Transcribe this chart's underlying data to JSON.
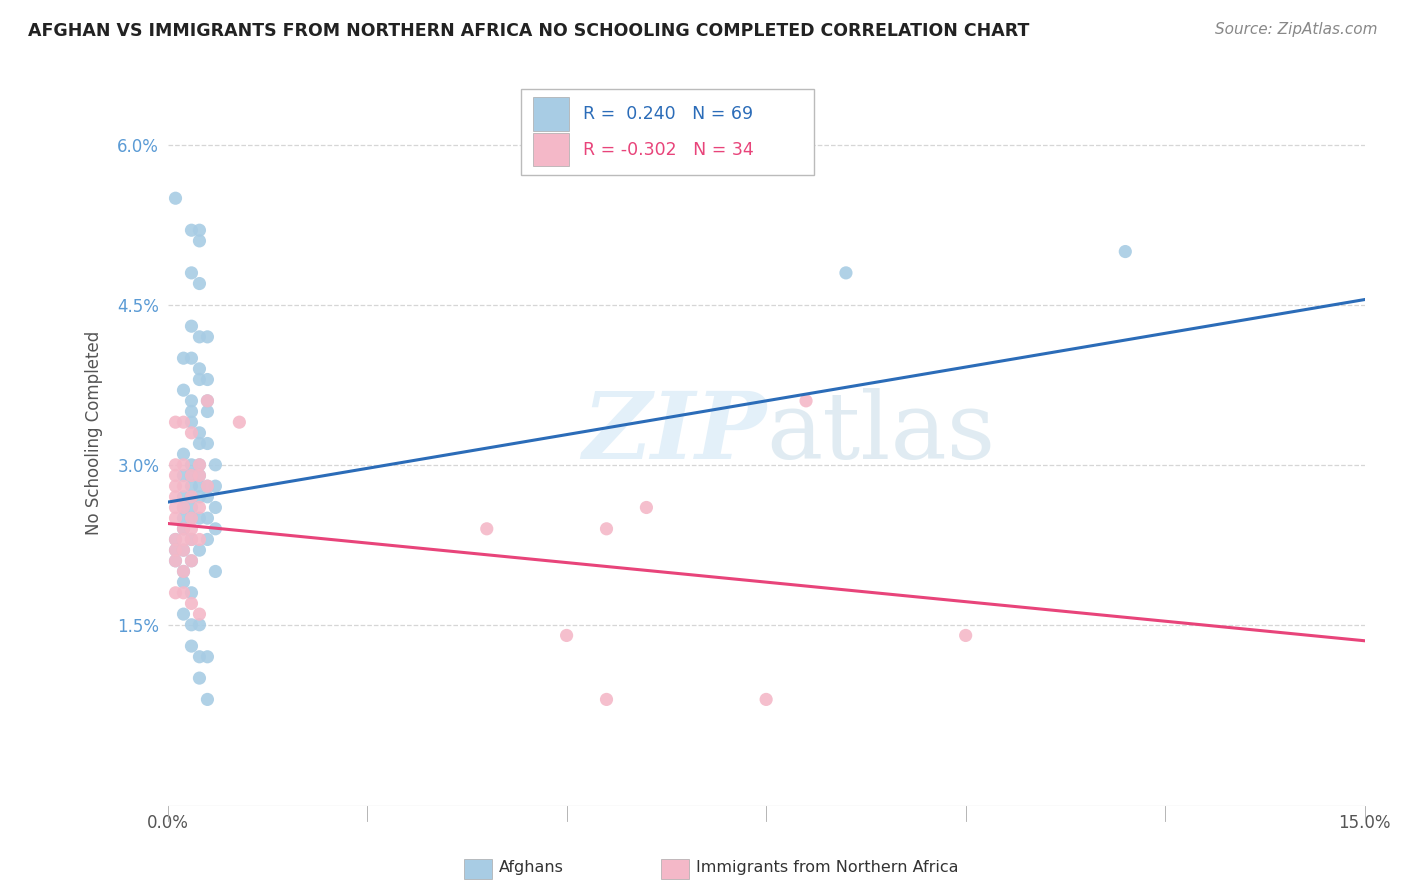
{
  "title": "AFGHAN VS IMMIGRANTS FROM NORTHERN AFRICA NO SCHOOLING COMPLETED CORRELATION CHART",
  "source": "Source: ZipAtlas.com",
  "ylabel": "No Schooling Completed",
  "ytick_labels": [
    "1.5%",
    "3.0%",
    "4.5%",
    "6.0%"
  ],
  "ytick_values": [
    0.015,
    0.03,
    0.045,
    0.06
  ],
  "xlim": [
    0.0,
    0.15
  ],
  "ylim": [
    -0.002,
    0.068
  ],
  "watermark": "ZIPatlas",
  "blue_color": "#a8cce4",
  "pink_color": "#f4b8c8",
  "blue_line_color": "#2b6cb8",
  "pink_line_color": "#e8447a",
  "blue_line": [
    [
      0.0,
      0.0265
    ],
    [
      0.15,
      0.0455
    ]
  ],
  "pink_line": [
    [
      0.0,
      0.0245
    ],
    [
      0.15,
      0.0135
    ]
  ],
  "grid_color": "#cccccc",
  "background_color": "#ffffff",
  "blue_scatter": [
    [
      0.001,
      0.055
    ],
    [
      0.003,
      0.052
    ],
    [
      0.004,
      0.052
    ],
    [
      0.004,
      0.051
    ],
    [
      0.003,
      0.048
    ],
    [
      0.004,
      0.047
    ],
    [
      0.003,
      0.043
    ],
    [
      0.004,
      0.042
    ],
    [
      0.005,
      0.042
    ],
    [
      0.002,
      0.04
    ],
    [
      0.003,
      0.04
    ],
    [
      0.004,
      0.039
    ],
    [
      0.004,
      0.038
    ],
    [
      0.005,
      0.038
    ],
    [
      0.002,
      0.037
    ],
    [
      0.003,
      0.036
    ],
    [
      0.005,
      0.036
    ],
    [
      0.003,
      0.035
    ],
    [
      0.005,
      0.035
    ],
    [
      0.003,
      0.034
    ],
    [
      0.004,
      0.033
    ],
    [
      0.004,
      0.032
    ],
    [
      0.005,
      0.032
    ],
    [
      0.002,
      0.031
    ],
    [
      0.003,
      0.03
    ],
    [
      0.004,
      0.03
    ],
    [
      0.006,
      0.03
    ],
    [
      0.002,
      0.029
    ],
    [
      0.003,
      0.029
    ],
    [
      0.004,
      0.029
    ],
    [
      0.003,
      0.028
    ],
    [
      0.004,
      0.028
    ],
    [
      0.005,
      0.028
    ],
    [
      0.006,
      0.028
    ],
    [
      0.002,
      0.027
    ],
    [
      0.003,
      0.027
    ],
    [
      0.004,
      0.027
    ],
    [
      0.005,
      0.027
    ],
    [
      0.002,
      0.026
    ],
    [
      0.003,
      0.026
    ],
    [
      0.006,
      0.026
    ],
    [
      0.002,
      0.025
    ],
    [
      0.003,
      0.025
    ],
    [
      0.004,
      0.025
    ],
    [
      0.005,
      0.025
    ],
    [
      0.002,
      0.024
    ],
    [
      0.006,
      0.024
    ],
    [
      0.001,
      0.023
    ],
    [
      0.003,
      0.023
    ],
    [
      0.005,
      0.023
    ],
    [
      0.001,
      0.022
    ],
    [
      0.002,
      0.022
    ],
    [
      0.004,
      0.022
    ],
    [
      0.001,
      0.021
    ],
    [
      0.003,
      0.021
    ],
    [
      0.002,
      0.02
    ],
    [
      0.006,
      0.02
    ],
    [
      0.002,
      0.019
    ],
    [
      0.003,
      0.018
    ],
    [
      0.002,
      0.016
    ],
    [
      0.003,
      0.015
    ],
    [
      0.004,
      0.015
    ],
    [
      0.003,
      0.013
    ],
    [
      0.004,
      0.012
    ],
    [
      0.005,
      0.012
    ],
    [
      0.004,
      0.01
    ],
    [
      0.005,
      0.008
    ],
    [
      0.12,
      0.05
    ],
    [
      0.085,
      0.048
    ]
  ],
  "pink_scatter": [
    [
      0.001,
      0.034
    ],
    [
      0.002,
      0.034
    ],
    [
      0.003,
      0.033
    ],
    [
      0.001,
      0.03
    ],
    [
      0.002,
      0.03
    ],
    [
      0.004,
      0.03
    ],
    [
      0.001,
      0.029
    ],
    [
      0.003,
      0.029
    ],
    [
      0.004,
      0.029
    ],
    [
      0.001,
      0.028
    ],
    [
      0.002,
      0.028
    ],
    [
      0.005,
      0.028
    ],
    [
      0.001,
      0.027
    ],
    [
      0.003,
      0.027
    ],
    [
      0.001,
      0.026
    ],
    [
      0.002,
      0.026
    ],
    [
      0.004,
      0.026
    ],
    [
      0.001,
      0.025
    ],
    [
      0.003,
      0.025
    ],
    [
      0.002,
      0.024
    ],
    [
      0.003,
      0.024
    ],
    [
      0.001,
      0.023
    ],
    [
      0.002,
      0.023
    ],
    [
      0.003,
      0.023
    ],
    [
      0.004,
      0.023
    ],
    [
      0.001,
      0.022
    ],
    [
      0.002,
      0.022
    ],
    [
      0.001,
      0.021
    ],
    [
      0.003,
      0.021
    ],
    [
      0.002,
      0.02
    ],
    [
      0.001,
      0.018
    ],
    [
      0.002,
      0.018
    ],
    [
      0.003,
      0.017
    ],
    [
      0.004,
      0.016
    ],
    [
      0.08,
      0.036
    ],
    [
      0.06,
      0.026
    ],
    [
      0.055,
      0.024
    ],
    [
      0.05,
      0.014
    ],
    [
      0.1,
      0.014
    ],
    [
      0.005,
      0.036
    ],
    [
      0.04,
      0.024
    ],
    [
      0.009,
      0.034
    ],
    [
      0.055,
      0.008
    ],
    [
      0.075,
      0.008
    ]
  ]
}
